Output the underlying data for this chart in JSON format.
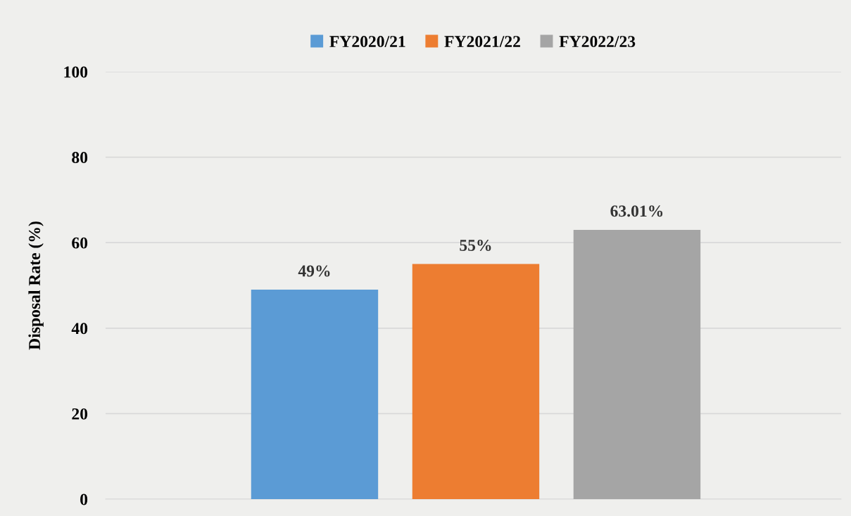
{
  "chart_data": {
    "type": "bar",
    "ylabel": "Disposal Rate (%)",
    "categories": [
      null
    ],
    "series": [
      {
        "name": "FY2020/21",
        "color": "#5b9bd5",
        "values": [
          49
        ],
        "value_labels": [
          "49%"
        ]
      },
      {
        "name": "FY2021/22",
        "color": "#ed7d31",
        "values": [
          55
        ],
        "value_labels": [
          "55%"
        ]
      },
      {
        "name": "FY2022/23",
        "color": "#a5a5a5",
        "values": [
          63.01
        ],
        "value_labels": [
          "63.01%"
        ]
      }
    ],
    "ylim": [
      0,
      100
    ],
    "yticks": [
      0,
      20,
      40,
      60,
      80,
      100
    ],
    "grid": "y",
    "legend": "top"
  }
}
